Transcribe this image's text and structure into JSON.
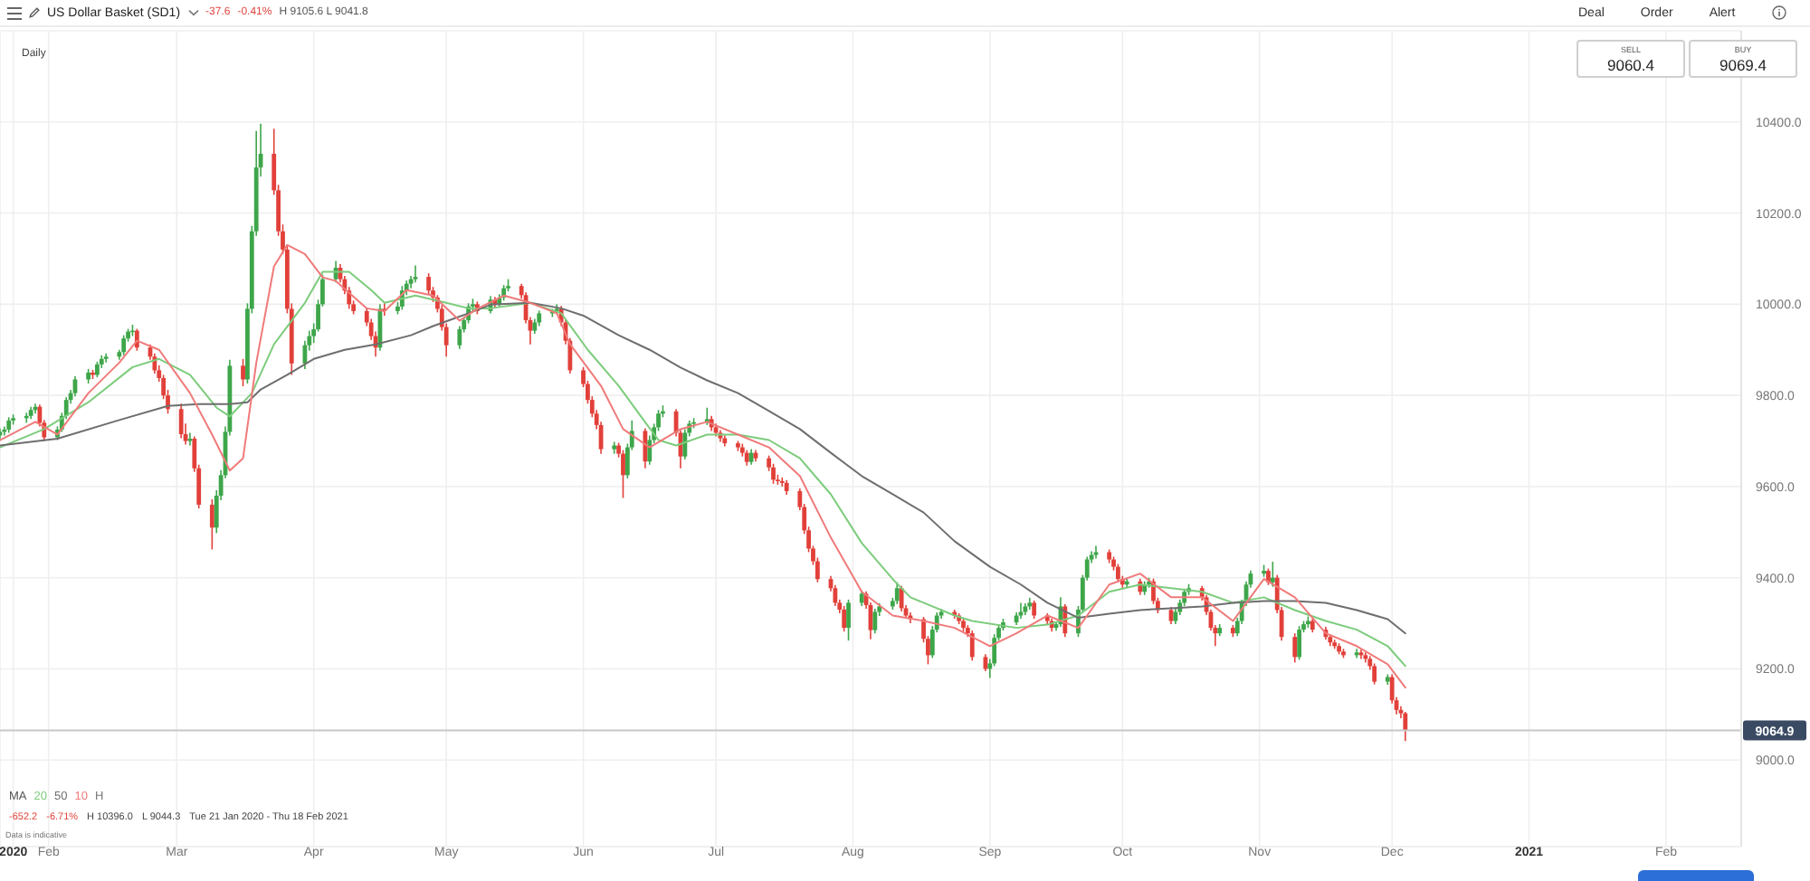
{
  "chart_data": {
    "type": "candlestick",
    "title": "US Dollar Basket (SD1)",
    "subtitle": "Daily",
    "x": [
      "2020-01-21",
      "2020-01-22",
      "2020-01-23",
      "2020-01-24",
      "2020-01-27",
      "2020-01-28",
      "2020-01-29",
      "2020-01-30",
      "2020-01-31",
      "2020-02-03",
      "2020-02-04",
      "2020-02-05",
      "2020-02-06",
      "2020-02-07",
      "2020-02-10",
      "2020-02-11",
      "2020-02-12",
      "2020-02-13",
      "2020-02-14",
      "2020-02-17",
      "2020-02-18",
      "2020-02-19",
      "2020-02-20",
      "2020-02-21",
      "2020-02-24",
      "2020-02-25",
      "2020-02-26",
      "2020-02-27",
      "2020-02-28",
      "2020-03-02",
      "2020-03-03",
      "2020-03-04",
      "2020-03-05",
      "2020-03-06",
      "2020-03-09",
      "2020-03-10",
      "2020-03-11",
      "2020-03-12",
      "2020-03-13",
      "2020-03-16",
      "2020-03-17",
      "2020-03-18",
      "2020-03-19",
      "2020-03-20",
      "2020-03-23",
      "2020-03-24",
      "2020-03-25",
      "2020-03-26",
      "2020-03-27",
      "2020-03-30",
      "2020-03-31",
      "2020-04-01",
      "2020-04-02",
      "2020-04-03",
      "2020-04-06",
      "2020-04-07",
      "2020-04-08",
      "2020-04-09",
      "2020-04-10",
      "2020-04-13",
      "2020-04-14",
      "2020-04-15",
      "2020-04-16",
      "2020-04-17",
      "2020-04-20",
      "2020-04-21",
      "2020-04-22",
      "2020-04-23",
      "2020-04-24",
      "2020-04-27",
      "2020-04-28",
      "2020-04-29",
      "2020-04-30",
      "2020-05-01",
      "2020-05-04",
      "2020-05-05",
      "2020-05-06",
      "2020-05-07",
      "2020-05-08",
      "2020-05-11",
      "2020-05-12",
      "2020-05-13",
      "2020-05-14",
      "2020-05-15",
      "2020-05-18",
      "2020-05-19",
      "2020-05-20",
      "2020-05-21",
      "2020-05-22",
      "2020-05-25",
      "2020-05-26",
      "2020-05-27",
      "2020-05-28",
      "2020-05-29",
      "2020-06-01",
      "2020-06-02",
      "2020-06-03",
      "2020-06-04",
      "2020-06-05",
      "2020-06-08",
      "2020-06-09",
      "2020-06-10",
      "2020-06-11",
      "2020-06-12",
      "2020-06-15",
      "2020-06-16",
      "2020-06-17",
      "2020-06-18",
      "2020-06-19",
      "2020-06-22",
      "2020-06-23",
      "2020-06-24",
      "2020-06-25",
      "2020-06-26",
      "2020-06-29",
      "2020-06-30",
      "2020-07-01",
      "2020-07-02",
      "2020-07-03",
      "2020-07-06",
      "2020-07-07",
      "2020-07-08",
      "2020-07-09",
      "2020-07-10",
      "2020-07-13",
      "2020-07-14",
      "2020-07-15",
      "2020-07-16",
      "2020-07-17",
      "2020-07-20",
      "2020-07-21",
      "2020-07-22",
      "2020-07-23",
      "2020-07-24",
      "2020-07-27",
      "2020-07-28",
      "2020-07-29",
      "2020-07-30",
      "2020-07-31",
      "2020-08-03",
      "2020-08-04",
      "2020-08-05",
      "2020-08-06",
      "2020-08-07",
      "2020-08-10",
      "2020-08-11",
      "2020-08-12",
      "2020-08-13",
      "2020-08-14",
      "2020-08-17",
      "2020-08-18",
      "2020-08-19",
      "2020-08-20",
      "2020-08-21",
      "2020-08-24",
      "2020-08-25",
      "2020-08-26",
      "2020-08-27",
      "2020-08-28",
      "2020-08-31",
      "2020-09-01",
      "2020-09-02",
      "2020-09-03",
      "2020-09-04",
      "2020-09-07",
      "2020-09-08",
      "2020-09-09",
      "2020-09-10",
      "2020-09-11",
      "2020-09-14",
      "2020-09-15",
      "2020-09-16",
      "2020-09-17",
      "2020-09-18",
      "2020-09-21",
      "2020-09-22",
      "2020-09-23",
      "2020-09-24",
      "2020-09-25",
      "2020-09-28",
      "2020-09-29",
      "2020-09-30",
      "2020-10-01",
      "2020-10-02",
      "2020-10-05",
      "2020-10-06",
      "2020-10-07",
      "2020-10-08",
      "2020-10-09",
      "2020-10-12",
      "2020-10-13",
      "2020-10-14",
      "2020-10-15",
      "2020-10-16",
      "2020-10-19",
      "2020-10-20",
      "2020-10-21",
      "2020-10-22",
      "2020-10-23",
      "2020-10-26",
      "2020-10-27",
      "2020-10-28",
      "2020-10-29",
      "2020-10-30",
      "2020-11-02",
      "2020-11-03",
      "2020-11-04",
      "2020-11-05",
      "2020-11-06",
      "2020-11-09",
      "2020-11-10",
      "2020-11-11",
      "2020-11-12",
      "2020-11-13",
      "2020-11-16",
      "2020-11-17",
      "2020-11-18",
      "2020-11-19",
      "2020-11-20",
      "2020-11-23",
      "2020-11-24",
      "2020-11-25",
      "2020-11-26",
      "2020-11-27",
      "2020-11-30",
      "2020-12-01",
      "2020-12-02",
      "2020-12-03",
      "2020-12-04"
    ],
    "ohlc": [
      [
        9712,
        9728,
        9705,
        9720
      ],
      [
        9720,
        9732,
        9712,
        9725
      ],
      [
        9725,
        9752,
        9718,
        9745
      ],
      [
        9745,
        9758,
        9736,
        9750
      ],
      [
        9750,
        9762,
        9740,
        9755
      ],
      [
        9755,
        9775,
        9748,
        9768
      ],
      [
        9768,
        9782,
        9760,
        9775
      ],
      [
        9775,
        9780,
        9732,
        9740
      ],
      [
        9740,
        9746,
        9700,
        9708
      ],
      [
        9708,
        9732,
        9702,
        9725
      ],
      [
        9725,
        9762,
        9720,
        9755
      ],
      [
        9755,
        9796,
        9748,
        9790
      ],
      [
        9790,
        9812,
        9782,
        9805
      ],
      [
        9805,
        9842,
        9798,
        9835
      ],
      [
        9835,
        9858,
        9826,
        9850
      ],
      [
        9850,
        9856,
        9836,
        9845
      ],
      [
        9845,
        9874,
        9840,
        9868
      ],
      [
        9868,
        9888,
        9860,
        9880
      ],
      [
        9880,
        9892,
        9872,
        9885
      ],
      [
        9885,
        9900,
        9878,
        9895
      ],
      [
        9895,
        9932,
        9888,
        9925
      ],
      [
        9925,
        9946,
        9918,
        9940
      ],
      [
        9940,
        9955,
        9930,
        9942
      ],
      [
        9942,
        9946,
        9898,
        9905
      ],
      [
        9905,
        9912,
        9878,
        9885
      ],
      [
        9885,
        9892,
        9848,
        9855
      ],
      [
        9855,
        9866,
        9830,
        9838
      ],
      [
        9838,
        9845,
        9792,
        9800
      ],
      [
        9800,
        9812,
        9760,
        9770
      ],
      [
        9770,
        9782,
        9706,
        9715
      ],
      [
        9715,
        9738,
        9692,
        9700
      ],
      [
        9700,
        9718,
        9690,
        9705
      ],
      [
        9705,
        9710,
        9632,
        9640
      ],
      [
        9640,
        9648,
        9552,
        9560
      ],
      [
        9560,
        9572,
        9462,
        9510
      ],
      [
        9510,
        9592,
        9498,
        9580
      ],
      [
        9580,
        9636,
        9570,
        9625
      ],
      [
        9625,
        9732,
        9618,
        9720
      ],
      [
        9720,
        9878,
        9712,
        9865
      ],
      [
        9865,
        9880,
        9820,
        9835
      ],
      [
        9835,
        10002,
        9826,
        9990
      ],
      [
        9990,
        10172,
        9980,
        10160
      ],
      [
        10160,
        10380,
        10150,
        10300
      ],
      [
        10300,
        10396,
        10280,
        10330
      ],
      [
        10330,
        10385,
        10240,
        10250
      ],
      [
        10250,
        10262,
        10150,
        10160
      ],
      [
        10160,
        10175,
        10110,
        10120
      ],
      [
        10120,
        10130,
        9980,
        9990
      ],
      [
        9990,
        10002,
        9845,
        9870
      ],
      [
        9870,
        9920,
        9858,
        9910
      ],
      [
        9910,
        9942,
        9898,
        9930
      ],
      [
        9930,
        9958,
        9915,
        9945
      ],
      [
        9945,
        10010,
        9940,
        10000
      ],
      [
        10000,
        10065,
        9995,
        10055
      ],
      [
        10055,
        10095,
        10048,
        10080
      ],
      [
        10080,
        10088,
        10048,
        10055
      ],
      [
        10055,
        10062,
        10022,
        10030
      ],
      [
        10030,
        10038,
        9990,
        10000
      ],
      [
        10000,
        10008,
        9978,
        9985
      ],
      [
        9985,
        9992,
        9952,
        9960
      ],
      [
        9960,
        9968,
        9922,
        9930
      ],
      [
        9930,
        9940,
        9885,
        9905
      ],
      [
        9905,
        10000,
        9898,
        9990
      ],
      [
        9990,
        10002,
        9975,
        9985
      ],
      [
        9985,
        10005,
        9978,
        9995
      ],
      [
        9995,
        10040,
        9988,
        10030
      ],
      [
        10030,
        10052,
        10020,
        10045
      ],
      [
        10045,
        10062,
        10035,
        10055
      ],
      [
        10055,
        10085,
        10048,
        10060
      ],
      [
        10060,
        10068,
        10022,
        10030
      ],
      [
        10030,
        10038,
        10005,
        10015
      ],
      [
        10015,
        10020,
        9982,
        9990
      ],
      [
        9990,
        9998,
        9942,
        9950
      ],
      [
        9950,
        9958,
        9885,
        9910
      ],
      [
        9910,
        9952,
        9902,
        9945
      ],
      [
        9945,
        9972,
        9938,
        9965
      ],
      [
        9965,
        10002,
        9958,
        9995
      ],
      [
        9995,
        10012,
        9985,
        10000
      ],
      [
        10000,
        10006,
        9978,
        9985
      ],
      [
        9985,
        10018,
        9980,
        10010
      ],
      [
        10010,
        10016,
        9992,
        10000
      ],
      [
        10000,
        10022,
        9995,
        10015
      ],
      [
        10015,
        10042,
        10008,
        10035
      ],
      [
        10035,
        10055,
        10028,
        10040
      ],
      [
        10040,
        10045,
        10012,
        10020
      ],
      [
        10020,
        10026,
        9958,
        9965
      ],
      [
        9965,
        9972,
        9912,
        9942
      ],
      [
        9942,
        9968,
        9935,
        9960
      ],
      [
        9960,
        9986,
        9952,
        9980
      ],
      [
        9980,
        9990,
        9972,
        9985
      ],
      [
        9985,
        10000,
        9978,
        9990
      ],
      [
        9990,
        9996,
        9952,
        9960
      ],
      [
        9960,
        9966,
        9912,
        9920
      ],
      [
        9920,
        9926,
        9848,
        9855
      ],
      [
        9855,
        9862,
        9818,
        9825
      ],
      [
        9825,
        9832,
        9782,
        9790
      ],
      [
        9790,
        9798,
        9752,
        9760
      ],
      [
        9760,
        9768,
        9726,
        9735
      ],
      [
        9735,
        9742,
        9672,
        9682
      ],
      [
        9682,
        9698,
        9672,
        9690
      ],
      [
        9690,
        9696,
        9664,
        9672
      ],
      [
        9672,
        9680,
        9575,
        9625
      ],
      [
        9625,
        9694,
        9618,
        9686
      ],
      [
        9686,
        9745,
        9680,
        9722
      ],
      [
        9722,
        9728,
        9640,
        9655
      ],
      [
        9655,
        9712,
        9648,
        9702
      ],
      [
        9702,
        9738,
        9695,
        9730
      ],
      [
        9730,
        9768,
        9722,
        9760
      ],
      [
        9760,
        9778,
        9752,
        9765
      ],
      [
        9765,
        9770,
        9710,
        9718
      ],
      [
        9718,
        9724,
        9640,
        9666
      ],
      [
        9666,
        9726,
        9660,
        9718
      ],
      [
        9718,
        9745,
        9710,
        9738
      ],
      [
        9738,
        9750,
        9728,
        9741
      ],
      [
        9741,
        9773,
        9735,
        9748
      ],
      [
        9748,
        9755,
        9722,
        9730
      ],
      [
        9730,
        9738,
        9710,
        9718
      ],
      [
        9718,
        9724,
        9698,
        9706
      ],
      [
        9706,
        9712,
        9688,
        9695
      ],
      [
        9695,
        9700,
        9678,
        9686
      ],
      [
        9686,
        9694,
        9666,
        9674
      ],
      [
        9674,
        9680,
        9646,
        9654
      ],
      [
        9654,
        9682,
        9648,
        9674
      ],
      [
        9674,
        9680,
        9655,
        9662
      ],
      [
        9662,
        9668,
        9634,
        9642
      ],
      [
        9642,
        9650,
        9606,
        9615
      ],
      [
        9615,
        9626,
        9604,
        9612
      ],
      [
        9612,
        9620,
        9600,
        9608
      ],
      [
        9608,
        9614,
        9582,
        9590
      ],
      [
        9590,
        9596,
        9548,
        9555
      ],
      [
        9555,
        9562,
        9496,
        9504
      ],
      [
        9504,
        9512,
        9456,
        9464
      ],
      [
        9464,
        9470,
        9428,
        9436
      ],
      [
        9436,
        9444,
        9390,
        9397
      ],
      [
        9397,
        9404,
        9370,
        9377
      ],
      [
        9377,
        9384,
        9338,
        9345
      ],
      [
        9345,
        9352,
        9322,
        9330
      ],
      [
        9330,
        9338,
        9282,
        9290
      ],
      [
        9290,
        9352,
        9262,
        9345
      ],
      [
        9345,
        9372,
        9338,
        9365
      ],
      [
        9365,
        9370,
        9332,
        9340
      ],
      [
        9340,
        9346,
        9265,
        9285
      ],
      [
        9285,
        9332,
        9278,
        9325
      ],
      [
        9325,
        9344,
        9316,
        9337
      ],
      [
        9337,
        9356,
        9330,
        9349
      ],
      [
        9349,
        9390,
        9342,
        9377
      ],
      [
        9377,
        9382,
        9326,
        9333
      ],
      [
        9333,
        9340,
        9310,
        9317
      ],
      [
        9317,
        9324,
        9300,
        9309
      ],
      [
        9309,
        9314,
        9258,
        9266
      ],
      [
        9266,
        9272,
        9210,
        9230
      ],
      [
        9230,
        9294,
        9224,
        9286
      ],
      [
        9286,
        9324,
        9280,
        9317
      ],
      [
        9317,
        9332,
        9310,
        9325
      ],
      [
        9325,
        9330,
        9310,
        9317
      ],
      [
        9317,
        9322,
        9298,
        9305
      ],
      [
        9305,
        9312,
        9282,
        9290
      ],
      [
        9290,
        9296,
        9270,
        9278
      ],
      [
        9278,
        9284,
        9218,
        9226
      ],
      [
        9226,
        9232,
        9195,
        9200
      ],
      [
        9200,
        9222,
        9180,
        9212
      ],
      [
        9212,
        9276,
        9206,
        9268
      ],
      [
        9268,
        9298,
        9262,
        9290
      ],
      [
        9290,
        9310,
        9284,
        9302
      ],
      [
        9302,
        9324,
        9296,
        9317
      ],
      [
        9317,
        9345,
        9310,
        9325
      ],
      [
        9325,
        9344,
        9318,
        9337
      ],
      [
        9337,
        9356,
        9330,
        9345
      ],
      [
        9345,
        9350,
        9310,
        9317
      ],
      [
        9317,
        9322,
        9298,
        9305
      ],
      [
        9305,
        9310,
        9282,
        9290
      ],
      [
        9290,
        9304,
        9284,
        9298
      ],
      [
        9298,
        9357,
        9292,
        9337
      ],
      [
        9337,
        9342,
        9270,
        9278
      ],
      [
        9278,
        9338,
        9270,
        9330
      ],
      [
        9330,
        9406,
        9324,
        9400
      ],
      [
        9400,
        9446,
        9394,
        9440
      ],
      [
        9440,
        9458,
        9432,
        9450
      ],
      [
        9450,
        9470,
        9442,
        9456
      ],
      [
        9456,
        9462,
        9432,
        9440
      ],
      [
        9440,
        9446,
        9416,
        9424
      ],
      [
        9424,
        9430,
        9390,
        9397
      ],
      [
        9397,
        9404,
        9378,
        9385
      ],
      [
        9385,
        9400,
        9378,
        9392
      ],
      [
        9392,
        9398,
        9362,
        9369
      ],
      [
        9369,
        9392,
        9362,
        9385
      ],
      [
        9385,
        9400,
        9378,
        9392
      ],
      [
        9392,
        9398,
        9342,
        9349
      ],
      [
        9349,
        9356,
        9322,
        9329
      ],
      [
        9329,
        9336,
        9298,
        9305
      ],
      [
        9305,
        9332,
        9298,
        9325
      ],
      [
        9325,
        9352,
        9318,
        9345
      ],
      [
        9345,
        9376,
        9338,
        9369
      ],
      [
        9369,
        9386,
        9362,
        9377
      ],
      [
        9377,
        9382,
        9350,
        9357
      ],
      [
        9357,
        9362,
        9318,
        9325
      ],
      [
        9325,
        9330,
        9284,
        9290
      ],
      [
        9290,
        9296,
        9250,
        9278
      ],
      [
        9278,
        9298,
        9272,
        9290
      ],
      [
        9290,
        9296,
        9270,
        9278
      ],
      [
        9278,
        9312,
        9272,
        9305
      ],
      [
        9305,
        9352,
        9298,
        9345
      ],
      [
        9345,
        9392,
        9338,
        9385
      ],
      [
        9385,
        9416,
        9378,
        9409
      ],
      [
        9409,
        9428,
        9402,
        9415
      ],
      [
        9415,
        9420,
        9384,
        9390
      ],
      [
        9390,
        9435,
        9380,
        9400
      ],
      [
        9400,
        9406,
        9322,
        9329
      ],
      [
        9329,
        9336,
        9262,
        9270
      ],
      [
        9270,
        9278,
        9214,
        9226
      ],
      [
        9226,
        9294,
        9220,
        9286
      ],
      [
        9286,
        9305,
        9280,
        9298
      ],
      [
        9298,
        9315,
        9290,
        9305
      ],
      [
        9305,
        9310,
        9280,
        9286
      ],
      [
        9286,
        9292,
        9264,
        9270
      ],
      [
        9270,
        9276,
        9250,
        9258
      ],
      [
        9258,
        9264,
        9244,
        9250
      ],
      [
        9250,
        9256,
        9232,
        9238
      ],
      [
        9238,
        9244,
        9224,
        9230
      ],
      [
        9230,
        9244,
        9224,
        9236
      ],
      [
        9236,
        9242,
        9222,
        9230
      ],
      [
        9230,
        9236,
        9214,
        9222
      ],
      [
        9222,
        9228,
        9198,
        9206
      ],
      [
        9206,
        9212,
        9166,
        9172
      ],
      [
        9172,
        9188,
        9165,
        9182
      ],
      [
        9182,
        9188,
        9124,
        9131
      ],
      [
        9131,
        9138,
        9100,
        9110
      ],
      [
        9110,
        9118,
        9092,
        9102.5
      ],
      [
        9102.5,
        9105.6,
        9041.8,
        9064.9
      ]
    ],
    "series": [
      {
        "type": "line",
        "name": "20",
        "color": "#7ccc7c",
        "x": [
          "2020-01-21",
          "2020-01-31",
          "2020-02-10",
          "2020-02-20",
          "2020-02-26",
          "2020-03-04",
          "2020-03-10",
          "2020-03-13",
          "2020-03-18",
          "2020-03-23",
          "2020-03-30",
          "2020-04-03",
          "2020-04-09",
          "2020-04-14",
          "2020-04-17",
          "2020-04-24",
          "2020-05-01",
          "2020-05-06",
          "2020-05-11",
          "2020-05-20",
          "2020-05-27",
          "2020-06-02",
          "2020-06-09",
          "2020-06-15",
          "2020-06-18",
          "2020-06-22",
          "2020-06-29",
          "2020-07-06",
          "2020-07-13",
          "2020-07-20",
          "2020-07-27",
          "2020-08-03",
          "2020-08-10",
          "2020-08-14",
          "2020-08-24",
          "2020-08-28",
          "2020-09-07",
          "2020-09-14",
          "2020-09-21",
          "2020-09-28",
          "2020-10-05",
          "2020-10-12",
          "2020-10-19",
          "2020-10-26",
          "2020-11-02",
          "2020-11-09",
          "2020-11-16",
          "2020-11-23",
          "2020-11-30",
          "2020-12-04"
        ],
        "values": [
          9686,
          9726,
          9785,
          9862,
          9880,
          9845,
          9773,
          9754,
          9805,
          9912,
          10003,
          10071,
          10071,
          10031,
          10003,
          10019,
          10003,
          9991,
          9991,
          10003,
          9980,
          9900,
          9821,
          9741,
          9702,
          9690,
          9714,
          9714,
          9702,
          9662,
          9583,
          9476,
          9397,
          9357,
          9317,
          9305,
          9290,
          9297,
          9317,
          9369,
          9385,
          9377,
          9369,
          9345,
          9357,
          9329,
          9305,
          9286,
          9250,
          9206
        ]
      },
      {
        "type": "line",
        "name": "50",
        "color": "#6e6e6e",
        "x": [
          "2020-01-21",
          "2020-02-03",
          "2020-02-17",
          "2020-02-28",
          "2020-03-06",
          "2020-03-13",
          "2020-03-17",
          "2020-03-20",
          "2020-03-26",
          "2020-04-01",
          "2020-04-08",
          "2020-04-15",
          "2020-04-23",
          "2020-04-28",
          "2020-05-06",
          "2020-05-11",
          "2020-05-20",
          "2020-05-27",
          "2020-06-01",
          "2020-06-09",
          "2020-06-16",
          "2020-06-23",
          "2020-06-29",
          "2020-07-06",
          "2020-07-13",
          "2020-07-20",
          "2020-07-27",
          "2020-08-03",
          "2020-08-10",
          "2020-08-17",
          "2020-08-24",
          "2020-09-01",
          "2020-09-08",
          "2020-09-14",
          "2020-09-21",
          "2020-09-28",
          "2020-10-05",
          "2020-10-12",
          "2020-10-19",
          "2020-10-26",
          "2020-11-02",
          "2020-11-09",
          "2020-11-16",
          "2020-11-23",
          "2020-11-30",
          "2020-12-04"
        ],
        "values": [
          9690,
          9705,
          9746,
          9777,
          9781,
          9781,
          9785,
          9813,
          9845,
          9880,
          9900,
          9912,
          9932,
          9952,
          9980,
          9999,
          10003,
          9991,
          9975,
          9932,
          9900,
          9861,
          9833,
          9805,
          9766,
          9726,
          9674,
          9623,
          9583,
          9543,
          9480,
          9424,
          9385,
          9345,
          9312,
          9321,
          9329,
          9333,
          9337,
          9345,
          9349,
          9349,
          9345,
          9329,
          9309,
          9278
        ]
      },
      {
        "type": "line",
        "name": "10",
        "color": "#f07a7a",
        "x": [
          "2020-01-21",
          "2020-01-29",
          "2020-02-03",
          "2020-02-10",
          "2020-02-17",
          "2020-02-21",
          "2020-02-26",
          "2020-03-04",
          "2020-03-09",
          "2020-03-13",
          "2020-03-16",
          "2020-03-19",
          "2020-03-23",
          "2020-03-26",
          "2020-03-30",
          "2020-04-03",
          "2020-04-06",
          "2020-04-13",
          "2020-04-17",
          "2020-04-22",
          "2020-04-28",
          "2020-05-04",
          "2020-05-08",
          "2020-05-14",
          "2020-05-20",
          "2020-05-26",
          "2020-05-29",
          "2020-06-05",
          "2020-06-10",
          "2020-06-16",
          "2020-06-23",
          "2020-06-29",
          "2020-07-06",
          "2020-07-13",
          "2020-07-20",
          "2020-07-27",
          "2020-08-03",
          "2020-08-10",
          "2020-08-17",
          "2020-08-24",
          "2020-09-01",
          "2020-09-07",
          "2020-09-14",
          "2020-09-21",
          "2020-09-28",
          "2020-10-05",
          "2020-10-12",
          "2020-10-19",
          "2020-10-26",
          "2020-11-02",
          "2020-11-09",
          "2020-11-16",
          "2020-11-23",
          "2020-11-30",
          "2020-12-04"
        ],
        "values": [
          9702,
          9742,
          9714,
          9805,
          9872,
          9920,
          9900,
          9805,
          9714,
          9635,
          9662,
          9872,
          10083,
          10130,
          10110,
          10059,
          10051,
          9991,
          9985,
          10031,
          10019,
          9964,
          9990,
          10019,
          10003,
          9980,
          9912,
          9821,
          9726,
          9686,
          9726,
          9742,
          9714,
          9686,
          9623,
          9488,
          9369,
          9317,
          9305,
          9290,
          9250,
          9278,
          9317,
          9290,
          9385,
          9409,
          9357,
          9357,
          9305,
          9397,
          9357,
          9278,
          9250,
          9210,
          9159
        ]
      }
    ],
    "xlim": [
      "2020-01-21",
      "2021-02-18"
    ],
    "xticks": [
      {
        "value": "2020-01-24",
        "label": "2020"
      },
      {
        "value": "2020-02-01",
        "label": "Feb"
      },
      {
        "value": "2020-03-01",
        "label": "Mar"
      },
      {
        "value": "2020-04-01",
        "label": "Apr"
      },
      {
        "value": "2020-05-01",
        "label": "May"
      },
      {
        "value": "2020-06-01",
        "label": "Jun"
      },
      {
        "value": "2020-07-01",
        "label": "Jul"
      },
      {
        "value": "2020-08-01",
        "label": "Aug"
      },
      {
        "value": "2020-09-01",
        "label": "Sep"
      },
      {
        "value": "2020-10-01",
        "label": "Oct"
      },
      {
        "value": "2020-11-01",
        "label": "Nov"
      },
      {
        "value": "2020-12-01",
        "label": "Dec"
      },
      {
        "value": "2021-01-01",
        "label": "2021"
      },
      {
        "value": "2021-02-01",
        "label": "Feb"
      }
    ],
    "ylim": [
      8810,
      10600
    ],
    "yticks": [
      {
        "value": 9000,
        "label": "9000.0"
      },
      {
        "value": 9200,
        "label": "9200.0"
      },
      {
        "value": 9400,
        "label": "9400.0"
      },
      {
        "value": 9600,
        "label": "9600.0"
      },
      {
        "value": 9800,
        "label": "9800.0"
      },
      {
        "value": 10000,
        "label": "10000.0"
      },
      {
        "value": 10200,
        "label": "10200.0"
      },
      {
        "value": 10400,
        "label": "10400.0"
      }
    ],
    "ref_lines": [
      {
        "axis": "y",
        "value": 9064.9,
        "label": "9064.9",
        "color": "#c8c8c8"
      }
    ],
    "grid": true,
    "legend": "bottom left",
    "legend_title": "MA",
    "annotations": [
      "-37.6",
      "-0.41%",
      "H 9105.6 L 9041.8",
      "Deal",
      "Order",
      "Alert",
      "SELL",
      "9060.4",
      "BUY",
      "9069.4",
      "H",
      "-652.2",
      "-6.71%",
      "H 10396.0",
      "L 9044.3",
      "Tue 21 Jan 2020 - Thu 18 Feb 2021",
      "Data is indicative"
    ]
  }
}
